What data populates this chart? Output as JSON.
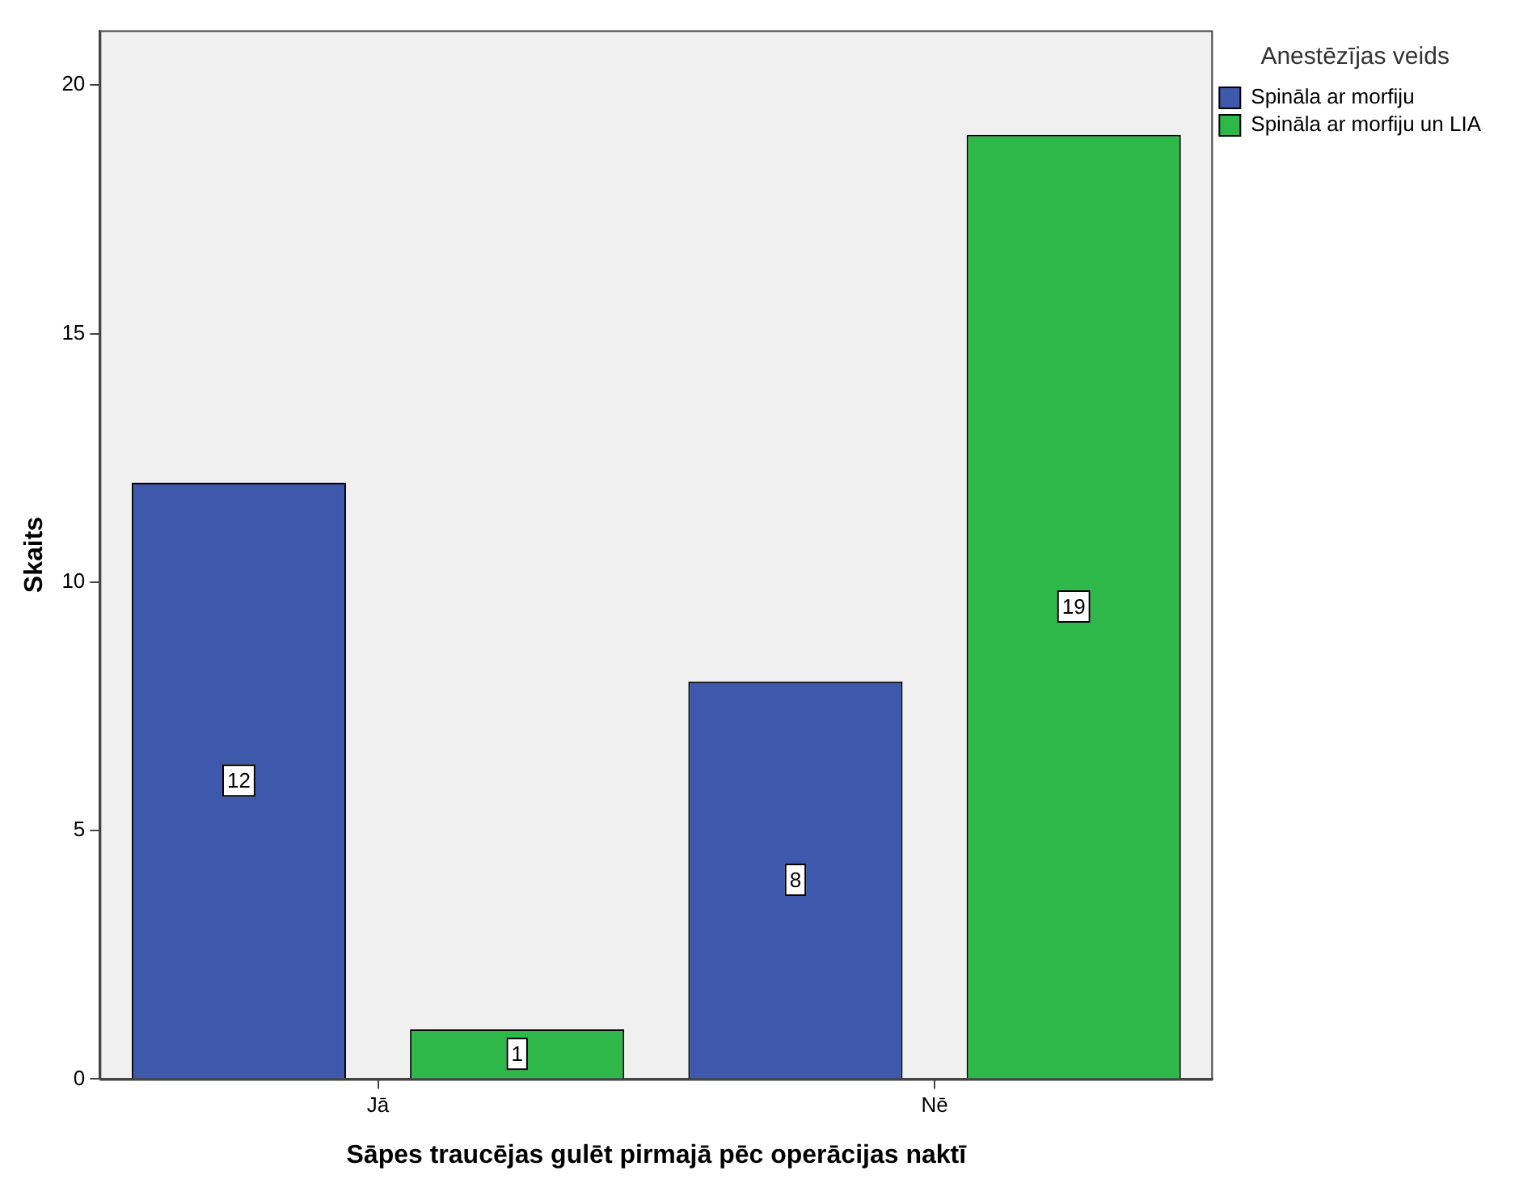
{
  "chart_data": {
    "type": "bar",
    "xlabel": "Sāpes traucējas gulēt pirmajā pēc operācijas naktī",
    "ylabel": "Skaits",
    "legend_title": "Anestēzījas veids",
    "categories": [
      "Jā",
      "Nē"
    ],
    "series": [
      {
        "name": "Spināla ar morfiju",
        "color": "#3e58ac",
        "values": [
          12,
          8
        ]
      },
      {
        "name": "Spināla ar morfiju un LIA",
        "color": "#2fb84a",
        "values": [
          1,
          19
        ]
      }
    ],
    "ylim": [
      0,
      21.1
    ],
    "yticks": [
      0,
      5,
      10,
      15,
      20
    ],
    "grid": false,
    "legend": "top right",
    "data_labels": true
  }
}
